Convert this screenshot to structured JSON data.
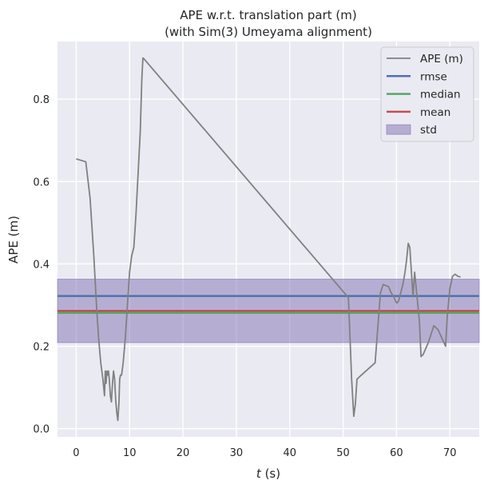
{
  "chart_data": {
    "type": "line",
    "title_lines": [
      "APE w.r.t. translation part (m)",
      "(with Sim(3) Umeyama alignment)"
    ],
    "xlabel_var": "t",
    "xlabel_unit": "(s)",
    "ylabel": "APE (m)",
    "xlim": [
      -3.5,
      75.5
    ],
    "ylim": [
      -0.02,
      0.94
    ],
    "x_ticks": [
      0,
      10,
      20,
      30,
      40,
      50,
      60,
      70
    ],
    "y_ticks": [
      0.0,
      0.2,
      0.4,
      0.6,
      0.8
    ],
    "y_tick_labels": [
      "0.0",
      "0.2",
      "0.4",
      "0.6",
      "0.8"
    ],
    "grid": true,
    "legend_position": "top-right",
    "stats": {
      "rmse": 0.322,
      "median": 0.281,
      "mean": 0.286,
      "std": 0.077
    },
    "colors": {
      "background": "#eaeaf2",
      "grid": "#ffffff",
      "ape": "#808080",
      "rmse": "#4c72b0",
      "median": "#55a868",
      "mean": "#c44e52",
      "std": "#8172b2"
    },
    "legend": [
      {
        "key": "ape",
        "label": "APE (m)",
        "kind": "line"
      },
      {
        "key": "rmse",
        "label": "rmse",
        "kind": "line"
      },
      {
        "key": "median",
        "label": "median",
        "kind": "line"
      },
      {
        "key": "mean",
        "label": "mean",
        "kind": "line"
      },
      {
        "key": "std",
        "label": "std",
        "kind": "patch"
      }
    ],
    "series": [
      {
        "key": "ape",
        "x": [
          0.0,
          1.8,
          2.6,
          3.3,
          3.8,
          4.2,
          4.6,
          5.0,
          5.3,
          5.45,
          5.6,
          5.75,
          5.9,
          6.05,
          6.2,
          6.4,
          6.6,
          6.8,
          7.0,
          7.2,
          7.4,
          7.6,
          7.8,
          8.0,
          8.15,
          8.3,
          8.5,
          8.8,
          9.2,
          9.6,
          10.0,
          10.4,
          10.8,
          11.2,
          11.6,
          12.0,
          12.3,
          12.5,
          12.7,
          51.0,
          51.3,
          51.6,
          52.0,
          52.3,
          52.6,
          53.0,
          56.0,
          57.0,
          57.5,
          58.5,
          59.0,
          59.5,
          59.8,
          60.1,
          60.4,
          60.8,
          61.2,
          61.6,
          61.9,
          62.2,
          62.5,
          62.8,
          63.1,
          63.4,
          63.7,
          64.0,
          64.3,
          64.6,
          65.0,
          66.0,
          67.0,
          67.8,
          68.5,
          69.2,
          69.5,
          70.0,
          70.5,
          71.0,
          71.5,
          72.0
        ],
        "y": [
          0.655,
          0.648,
          0.56,
          0.42,
          0.3,
          0.22,
          0.16,
          0.12,
          0.08,
          0.14,
          0.11,
          0.14,
          0.13,
          0.14,
          0.12,
          0.08,
          0.065,
          0.11,
          0.14,
          0.12,
          0.07,
          0.04,
          0.02,
          0.06,
          0.12,
          0.13,
          0.13,
          0.16,
          0.22,
          0.3,
          0.38,
          0.42,
          0.44,
          0.52,
          0.62,
          0.72,
          0.85,
          0.9,
          0.898,
          0.318,
          0.22,
          0.12,
          0.03,
          0.06,
          0.12,
          0.125,
          0.16,
          0.33,
          0.35,
          0.345,
          0.33,
          0.32,
          0.31,
          0.305,
          0.31,
          0.33,
          0.35,
          0.38,
          0.41,
          0.45,
          0.44,
          0.38,
          0.32,
          0.38,
          0.34,
          0.3,
          0.26,
          0.175,
          0.18,
          0.21,
          0.25,
          0.24,
          0.22,
          0.2,
          0.27,
          0.34,
          0.37,
          0.375,
          0.37,
          0.368
        ]
      }
    ]
  }
}
